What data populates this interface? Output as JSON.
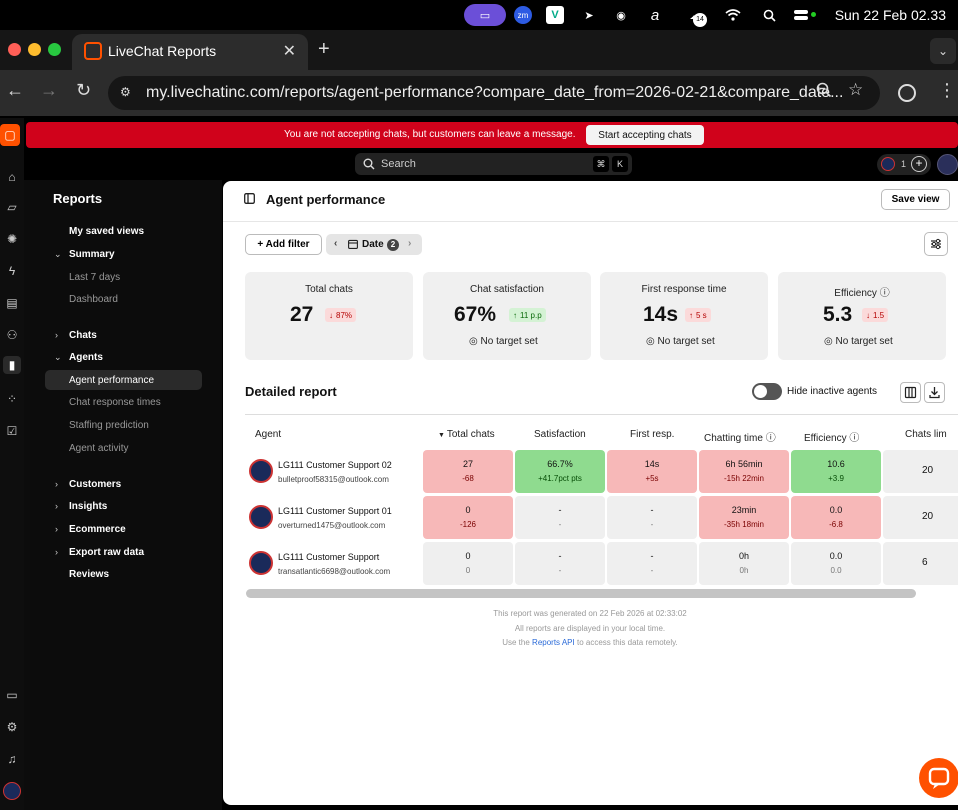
{
  "menubar": {
    "clock": "Sun 22 Feb  02.33",
    "zoom_label": "zm",
    "notif_count": "14"
  },
  "browser": {
    "tab_title": "LiveChat Reports",
    "url": "my.livechatinc.com/reports/agent-performance?compare_date_from=2026-02-21&compare_date..."
  },
  "banner": {
    "message": "You are not accepting chats, but customers can leave a message.",
    "button": "Start accepting chats"
  },
  "topbar": {
    "search_placeholder": "Search",
    "kbd1": "⌘",
    "kbd2": "K",
    "avatar_count": "1"
  },
  "sidebar": {
    "title": "Reports",
    "saved_views": "My saved views",
    "summary": "Summary",
    "summary_items": [
      "Last 7 days",
      "Dashboard"
    ],
    "chats": "Chats",
    "agents": "Agents",
    "agents_items": [
      "Agent performance",
      "Chat response times",
      "Staffing prediction",
      "Agent activity"
    ],
    "customers": "Customers",
    "insights": "Insights",
    "ecommerce": "Ecommerce",
    "export": "Export raw data",
    "reviews": "Reviews"
  },
  "page": {
    "title": "Agent performance",
    "save_view": "Save view",
    "add_filter": "Add filter",
    "date_filter": "Date",
    "date_count": "2"
  },
  "cards": [
    {
      "label": "Total chats",
      "value": "27",
      "delta": "87%",
      "direction": "down",
      "target": ""
    },
    {
      "label": "Chat satisfaction",
      "value": "67%",
      "delta": "11 p.p",
      "direction": "up",
      "target": "No target set"
    },
    {
      "label": "First response time",
      "value": "14s",
      "delta": "5 s",
      "direction": "up",
      "target": "No target set"
    },
    {
      "label": "Efficiency",
      "value": "5.3",
      "delta": "1.5",
      "direction": "down",
      "target": "No target set"
    }
  ],
  "detailed": {
    "title": "Detailed report",
    "hide_inactive": "Hide inactive agents",
    "columns": [
      "Agent",
      "Total chats",
      "Satisfaction",
      "First resp.",
      "Chatting time",
      "Efficiency",
      "Chats lim"
    ],
    "rows": [
      {
        "name": "LG111 Customer Support 02",
        "email": "bulletproof58315@outlook.com",
        "cells": [
          {
            "v": "27",
            "d": "-68"
          },
          {
            "v": "66.7%",
            "d": "+41.7pct pts"
          },
          {
            "v": "14s",
            "d": "+5s"
          },
          {
            "v": "6h 56min",
            "d": "-15h 22min"
          },
          {
            "v": "10.6",
            "d": "+3.9"
          }
        ],
        "limit": "20"
      },
      {
        "name": "LG111 Customer Support 01",
        "email": "overturned1475@outlook.com",
        "cells": [
          {
            "v": "0",
            "d": "-126"
          },
          {
            "v": "-",
            "d": "-"
          },
          {
            "v": "-",
            "d": "-"
          },
          {
            "v": "23min",
            "d": "-35h 18min"
          },
          {
            "v": "0.0",
            "d": "-6.8"
          }
        ],
        "limit": "20"
      },
      {
        "name": "LG111 Customer Support",
        "email": "transatlantic6698@outlook.com",
        "cells": [
          {
            "v": "0",
            "d": "0"
          },
          {
            "v": "-",
            "d": "-"
          },
          {
            "v": "-",
            "d": "-"
          },
          {
            "v": "0h",
            "d": "0h"
          },
          {
            "v": "0.0",
            "d": "0.0"
          }
        ],
        "limit": "6"
      }
    ]
  },
  "footer": {
    "line1": "This report was generated on 22 Feb 2026 at 02:33:02",
    "line2": "All reports are displayed in your local time.",
    "line3_pre": "Use the",
    "line3_link": "Reports API",
    "line3_post": "to access this data remotely."
  },
  "colors": {
    "brand": "#ff5100",
    "banner": "#d0021b",
    "cell_red": "#f7b8b8",
    "cell_green": "#8fdb8f",
    "cell_gray": "#efefef"
  }
}
